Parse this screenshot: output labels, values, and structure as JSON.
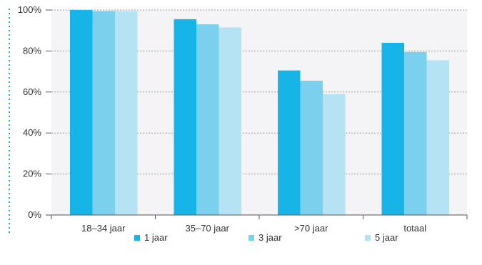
{
  "chart_data": {
    "type": "bar",
    "categories": [
      "18–34 jaar",
      "35–70 jaar",
      ">70 jaar",
      "totaal"
    ],
    "series": [
      {
        "name": "1 jaar",
        "values": [
          100,
          95.5,
          70.5,
          84
        ],
        "color": "#16b4e7"
      },
      {
        "name": "3 jaar",
        "values": [
          99.5,
          93,
          65.5,
          79.5
        ],
        "color": "#7bd0ee"
      },
      {
        "name": "5 jaar",
        "values": [
          99.5,
          91.5,
          59,
          75.5
        ],
        "color": "#b6e3f3"
      }
    ],
    "ylim": [
      0,
      100
    ],
    "yticks": [
      0,
      20,
      40,
      60,
      80,
      100
    ],
    "ytick_labels": [
      "0%",
      "20%",
      "40%",
      "60%",
      "80%",
      "100%"
    ],
    "grid": true,
    "legend_position": "bottom",
    "plot_background": "#f4f3f5",
    "accent_dotted_line_color": "#16b4e7"
  }
}
